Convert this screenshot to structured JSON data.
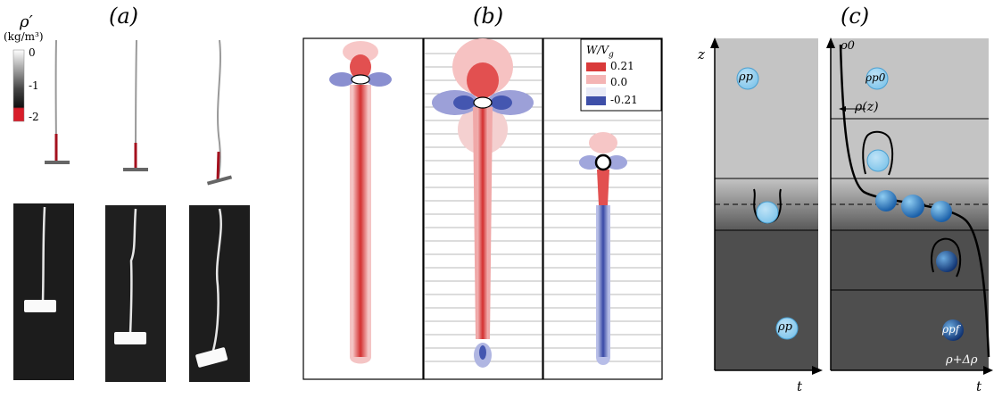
{
  "panels": {
    "a": {
      "label": "(a)"
    },
    "b": {
      "label": "(b)"
    },
    "c": {
      "label": "(c)"
    }
  },
  "colorbar_a": {
    "symbol": "ρ′",
    "unit": "(kg/m³)",
    "ticks": [
      "0",
      "-1",
      "-2"
    ],
    "colors": {
      "top": "#ffffff",
      "mid": "#222222",
      "bottom": "#d81e2a"
    }
  },
  "legend_b": {
    "title": "W/V",
    "title_sub": "g",
    "entries": [
      {
        "label": "0.21",
        "color": "#d93a3a"
      },
      {
        "label": "0.0",
        "color": "#f4b4b4"
      },
      {
        "label": "-0.21",
        "color": "#3e4fa8"
      }
    ]
  },
  "panel_c": {
    "z_axis": "z",
    "t_axis_left": "t",
    "t_axis_right": "t",
    "left": {
      "rho_top": "ρp",
      "rho_bottom": "ρp"
    },
    "right": {
      "rho0": "ρ0",
      "rho_p0": "ρp0",
      "rho_z": "ρ(z)",
      "rho_pf": "ρpf",
      "rho_delta": "ρ+Δρ"
    }
  }
}
